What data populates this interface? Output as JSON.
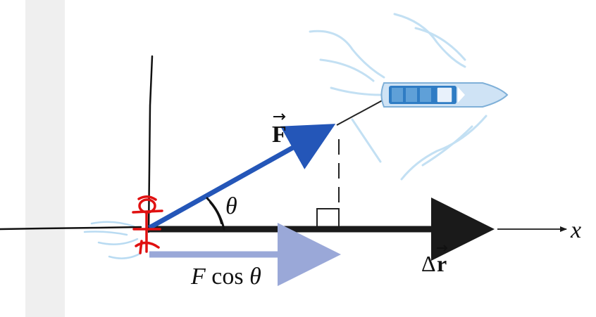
{
  "labels": {
    "force": "F",
    "theta": "θ",
    "displacement_delta": "Δ",
    "displacement_symbol": "r",
    "component_f": "F",
    "component_cos": " cos ",
    "component_theta": "θ",
    "x_axis": "x"
  },
  "colors": {
    "force_arrow": "#2456b8",
    "component_arrow": "#9aa8d8",
    "displacement_arrow": "#1a1a1a",
    "person_sketch": "#e01010",
    "boat_hull": "#cfe3f5",
    "boat_deck": "#2f7cc4",
    "water": "#b9dbf2",
    "sidebar": "#efefef"
  },
  "icons": {
    "person": "person-sketch-icon",
    "boat": "boat-icon",
    "right_angle": "right-angle-icon"
  }
}
